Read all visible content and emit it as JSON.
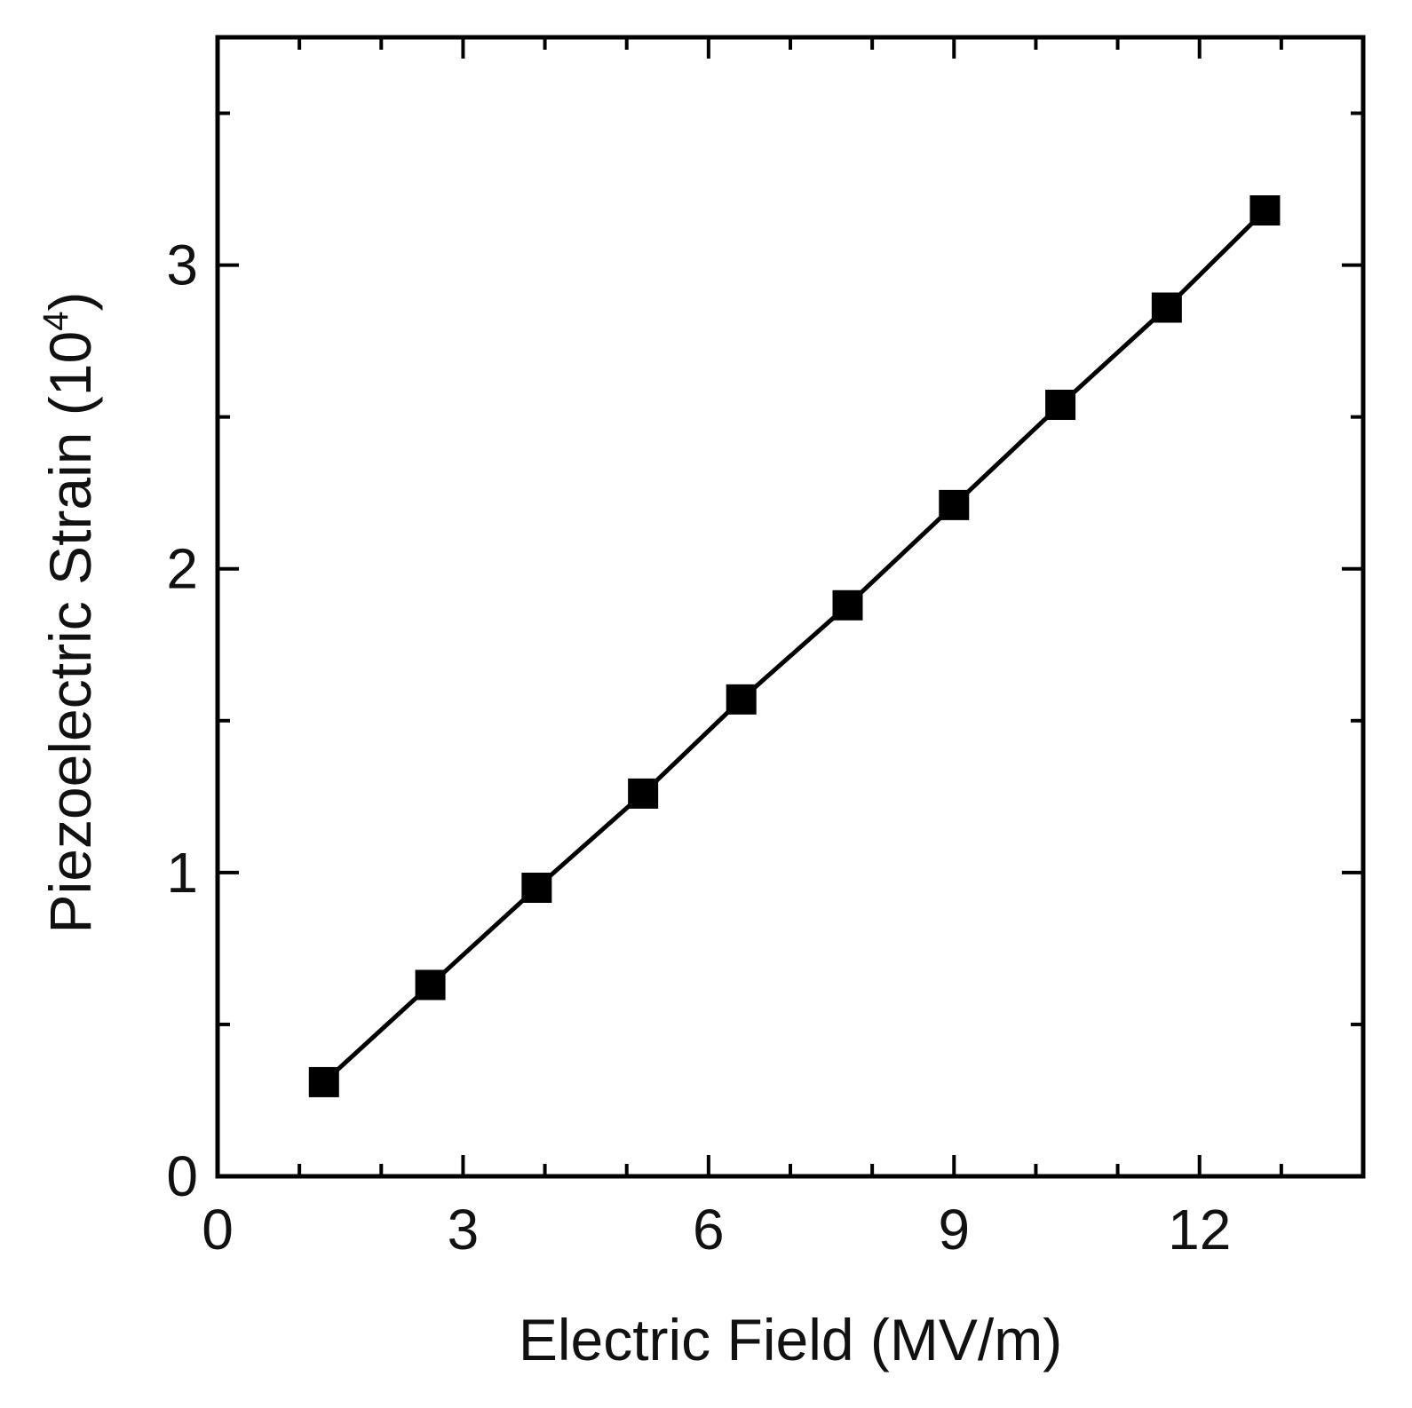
{
  "chart_data": {
    "type": "line",
    "xlabel": "Electric Field (MV/m)",
    "ylabel": "Piezoelectric Strain (10",
    "ylabel_superscript": "4",
    "ylabel_close": ")",
    "xlim": [
      0,
      14
    ],
    "ylim": [
      0,
      3.75
    ],
    "x_ticks": [
      "0",
      "3",
      "6",
      "9",
      "12"
    ],
    "x_tick_values": [
      0,
      3,
      6,
      9,
      12
    ],
    "x_minor_ticks": [
      1,
      2,
      4,
      5,
      7,
      8,
      10,
      11,
      13
    ],
    "y_ticks": [
      "0",
      "1",
      "2",
      "3"
    ],
    "y_tick_values": [
      0,
      1,
      2,
      3
    ],
    "y_minor_ticks": [
      0.5,
      1.5,
      2.5,
      3.5
    ],
    "grid": false,
    "marker": "filled-square",
    "colors": {
      "line": "#000000",
      "marker": "#000000"
    },
    "series": [
      {
        "x": [
          1.3,
          2.6,
          3.9,
          5.2,
          6.4,
          7.7,
          9.0,
          10.3,
          11.6,
          12.8
        ],
        "y": [
          0.31,
          0.63,
          0.95,
          1.26,
          1.57,
          1.88,
          2.21,
          2.54,
          2.86,
          3.18
        ]
      }
    ]
  }
}
